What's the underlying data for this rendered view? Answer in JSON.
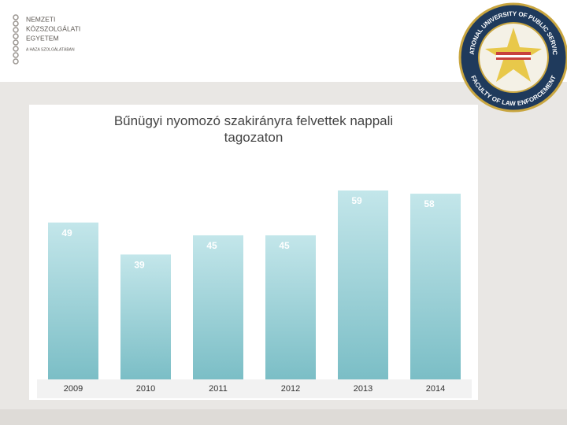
{
  "header": {
    "lines": [
      "NEMZETI",
      "KÖZSZOLGÁLATI",
      "EGYETEM"
    ],
    "motto": "A HAZA SZOLGÁLATÁBAN"
  },
  "logo": {
    "top": "NATIONAL UNIVERSITY OF PUBLIC SERVICE",
    "bottom": "FACULTY OF LAW ENFORCEMENT"
  },
  "chart_data": {
    "type": "bar",
    "title": "Bűnügyi nyomozó szakirányra felvettek nappali tagozaton",
    "categories": [
      "2009",
      "2010",
      "2011",
      "2012",
      "2013",
      "2014"
    ],
    "values": [
      49,
      39,
      45,
      45,
      59,
      58
    ],
    "color": "#8fcbd2"
  }
}
